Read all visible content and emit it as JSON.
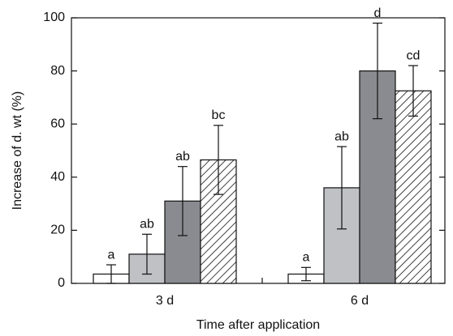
{
  "chart_data": {
    "type": "bar",
    "xlabel": "Time after application",
    "ylabel": "Increase of d. wt (%)",
    "categories": [
      "3 d",
      "6 d"
    ],
    "ylim": [
      0,
      100
    ],
    "yticks": [
      0,
      20,
      40,
      60,
      80,
      100
    ],
    "series": [
      {
        "color": "#ffffff",
        "values": [
          3.5,
          3.5
        ],
        "errors": [
          3.5,
          2.5
        ],
        "labels": [
          "a",
          "a"
        ]
      },
      {
        "color": "#c0c1c5",
        "values": [
          11,
          36
        ],
        "errors": [
          7.5,
          15.5
        ],
        "labels": [
          "ab",
          "ab"
        ]
      },
      {
        "color": "#8a8b90",
        "values": [
          31,
          80
        ],
        "errors": [
          13,
          18
        ],
        "labels": [
          "ab",
          "d"
        ]
      },
      {
        "color": "#ffffff",
        "hatch": true,
        "values": [
          46.5,
          72.5
        ],
        "errors": [
          13,
          9.5
        ],
        "labels": [
          "bc",
          "cd"
        ]
      }
    ]
  }
}
